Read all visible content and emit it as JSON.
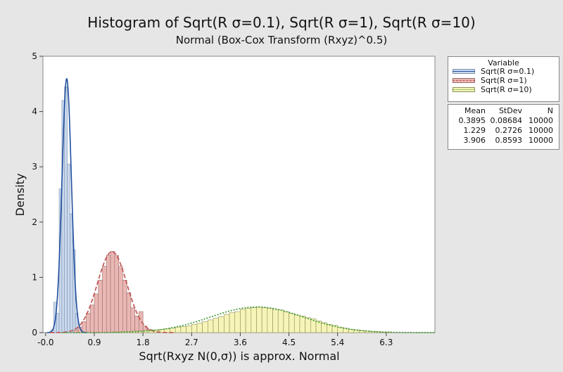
{
  "chart_data": {
    "type": "histogram",
    "title": "Histogram of Sqrt(R σ=0.1), Sqrt(R σ=1), Sqrt(R σ=10)",
    "subtitle": "Normal  (Box-Cox Transform (Rxyz)^0.5)",
    "xlabel": "Sqrt(Rxyz N(0,σ)) is approx. Normal",
    "ylabel": "Density",
    "xlim": [
      -0.05,
      7.2
    ],
    "ylim": [
      0,
      5
    ],
    "x_ticks": [
      "-0.0",
      "0.9",
      "1.8",
      "2.7",
      "3.6",
      "4.5",
      "5.4",
      "6.3"
    ],
    "y_ticks": [
      "0",
      "1",
      "2",
      "3",
      "4",
      "5"
    ],
    "grid": false,
    "legend_position": "right",
    "legend": {
      "title": "Variable",
      "entries": [
        "Sqrt(R σ=0.1)",
        "Sqrt(R σ=1)",
        "Sqrt(R σ=10)"
      ]
    },
    "stats_table": {
      "headers": [
        "Mean",
        "StDev",
        "N"
      ],
      "rows": [
        [
          "0.3895",
          "0.08684",
          "10000"
        ],
        [
          "1.229",
          "0.2726",
          "10000"
        ],
        [
          "3.906",
          "0.8593",
          "10000"
        ]
      ]
    },
    "series": [
      {
        "name": "Sqrt(R σ=0.1)",
        "mean": 0.3895,
        "stdev": 0.08684,
        "n": 10000,
        "fill": "#c9d8ec",
        "edge": "#7f93b0",
        "curve_color": "#1f4e9e",
        "curve_style": "solid",
        "bin_width": 0.05,
        "bins": [
          {
            "x0": 0.1,
            "h": 0.05
          },
          {
            "x0": 0.15,
            "h": 0.55
          },
          {
            "x0": 0.2,
            "h": 0.35
          },
          {
            "x0": 0.25,
            "h": 2.6
          },
          {
            "x0": 0.3,
            "h": 4.2
          },
          {
            "x0": 0.35,
            "h": 4.45
          },
          {
            "x0": 0.4,
            "h": 3.05
          },
          {
            "x0": 0.45,
            "h": 2.15
          },
          {
            "x0": 0.5,
            "h": 1.5
          },
          {
            "x0": 0.55,
            "h": 0.35
          },
          {
            "x0": 0.6,
            "h": 0.1
          }
        ]
      },
      {
        "name": "Sqrt(R σ=1)",
        "mean": 1.229,
        "stdev": 0.2726,
        "n": 10000,
        "fill": "#e9b7b4",
        "edge": "#9a6f6d",
        "curve_color": "#c0504d",
        "curve_style": "dashed",
        "bin_width": 0.075,
        "bins": [
          {
            "x0": 0.525,
            "h": 0.05
          },
          {
            "x0": 0.6,
            "h": 0.1
          },
          {
            "x0": 0.675,
            "h": 0.2
          },
          {
            "x0": 0.75,
            "h": 0.35
          },
          {
            "x0": 0.825,
            "h": 0.5
          },
          {
            "x0": 0.9,
            "h": 0.7
          },
          {
            "x0": 0.975,
            "h": 0.95
          },
          {
            "x0": 1.05,
            "h": 1.2
          },
          {
            "x0": 1.125,
            "h": 1.4
          },
          {
            "x0": 1.2,
            "h": 1.47
          },
          {
            "x0": 1.275,
            "h": 1.4
          },
          {
            "x0": 1.35,
            "h": 1.2
          },
          {
            "x0": 1.425,
            "h": 0.95
          },
          {
            "x0": 1.5,
            "h": 0.72
          },
          {
            "x0": 1.575,
            "h": 0.45
          },
          {
            "x0": 1.65,
            "h": 0.3
          },
          {
            "x0": 1.725,
            "h": 0.38
          },
          {
            "x0": 1.8,
            "h": 0.12
          },
          {
            "x0": 1.875,
            "h": 0.06
          },
          {
            "x0": 1.95,
            "h": 0.02
          }
        ]
      },
      {
        "name": "Sqrt(R σ=10)",
        "mean": 3.906,
        "stdev": 0.8593,
        "n": 10000,
        "fill": "#f6f4b7",
        "edge": "#8f8f5c",
        "curve_color": "#3a9a2a",
        "curve_style": "dotted",
        "bin_width": 0.1,
        "bins": [
          {
            "x0": 1.2,
            "h": 0.01
          },
          {
            "x0": 1.3,
            "h": 0.01
          },
          {
            "x0": 1.4,
            "h": 0.02
          },
          {
            "x0": 1.5,
            "h": 0.02
          },
          {
            "x0": 1.6,
            "h": 0.03
          },
          {
            "x0": 1.7,
            "h": 0.03
          },
          {
            "x0": 1.8,
            "h": 0.04
          },
          {
            "x0": 1.9,
            "h": 0.05
          },
          {
            "x0": 2.0,
            "h": 0.05
          },
          {
            "x0": 2.1,
            "h": 0.06
          },
          {
            "x0": 2.2,
            "h": 0.07
          },
          {
            "x0": 2.3,
            "h": 0.08
          },
          {
            "x0": 2.4,
            "h": 0.1
          },
          {
            "x0": 2.5,
            "h": 0.11
          },
          {
            "x0": 2.6,
            "h": 0.12
          },
          {
            "x0": 2.7,
            "h": 0.15
          },
          {
            "x0": 2.8,
            "h": 0.17
          },
          {
            "x0": 2.9,
            "h": 0.2
          },
          {
            "x0": 3.0,
            "h": 0.23
          },
          {
            "x0": 3.1,
            "h": 0.26
          },
          {
            "x0": 3.2,
            "h": 0.29
          },
          {
            "x0": 3.3,
            "h": 0.33
          },
          {
            "x0": 3.4,
            "h": 0.36
          },
          {
            "x0": 3.5,
            "h": 0.38
          },
          {
            "x0": 3.6,
            "h": 0.42
          },
          {
            "x0": 3.7,
            "h": 0.44
          },
          {
            "x0": 3.8,
            "h": 0.45
          },
          {
            "x0": 3.9,
            "h": 0.46
          },
          {
            "x0": 4.0,
            "h": 0.45
          },
          {
            "x0": 4.1,
            "h": 0.44
          },
          {
            "x0": 4.2,
            "h": 0.42
          },
          {
            "x0": 4.3,
            "h": 0.41
          },
          {
            "x0": 4.4,
            "h": 0.38
          },
          {
            "x0": 4.5,
            "h": 0.35
          },
          {
            "x0": 4.6,
            "h": 0.32
          },
          {
            "x0": 4.7,
            "h": 0.3
          },
          {
            "x0": 4.8,
            "h": 0.27
          },
          {
            "x0": 4.9,
            "h": 0.25
          },
          {
            "x0": 5.0,
            "h": 0.21
          },
          {
            "x0": 5.1,
            "h": 0.18
          },
          {
            "x0": 5.2,
            "h": 0.15
          },
          {
            "x0": 5.3,
            "h": 0.13
          },
          {
            "x0": 5.4,
            "h": 0.1
          },
          {
            "x0": 5.5,
            "h": 0.08
          },
          {
            "x0": 5.6,
            "h": 0.06
          },
          {
            "x0": 5.7,
            "h": 0.05
          },
          {
            "x0": 5.8,
            "h": 0.04
          },
          {
            "x0": 5.9,
            "h": 0.03
          },
          {
            "x0": 6.0,
            "h": 0.02
          },
          {
            "x0": 6.1,
            "h": 0.02
          },
          {
            "x0": 6.2,
            "h": 0.01
          },
          {
            "x0": 6.3,
            "h": 0.01
          }
        ]
      }
    ]
  }
}
